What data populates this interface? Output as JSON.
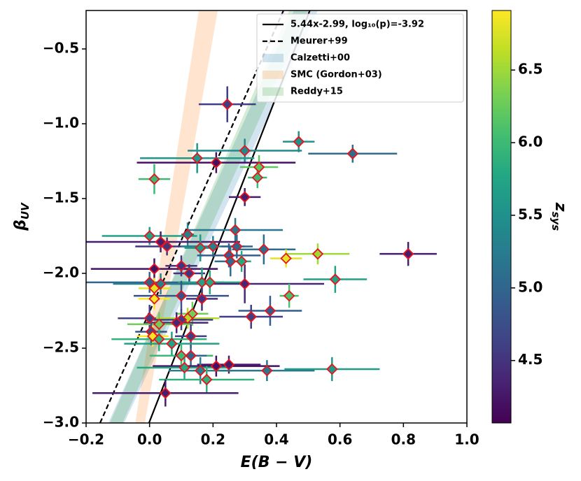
{
  "chart_data": {
    "type": "scatter",
    "xlabel": "E(B − V)",
    "ylabel": {
      "main": "β",
      "sub": "UV"
    },
    "colorbar_label": {
      "main": "z",
      "sub": "sys"
    },
    "colormap": "viridis",
    "marker_edge_color": "#e8141c",
    "xlim": [
      -0.2,
      1.0
    ],
    "ylim": [
      -3.0,
      -0.243
    ],
    "xticks": [
      {
        "value": -0.2,
        "label": "−0.2"
      },
      {
        "value": 0.0,
        "label": "0.0"
      },
      {
        "value": 0.2,
        "label": "0.2"
      },
      {
        "value": 0.4,
        "label": "0.4"
      },
      {
        "value": 0.6,
        "label": "0.6"
      },
      {
        "value": 0.8,
        "label": "0.8"
      },
      {
        "value": 1.0,
        "label": "1.0"
      }
    ],
    "yticks": [
      {
        "value": -3.0,
        "label": "−3.0"
      },
      {
        "value": -2.5,
        "label": "−2.5"
      },
      {
        "value": -2.0,
        "label": "−2.0"
      },
      {
        "value": -1.5,
        "label": "−1.5"
      },
      {
        "value": -1.0,
        "label": "−1.0"
      },
      {
        "value": -0.5,
        "label": "−0.5"
      }
    ],
    "clim": [
      4.07,
      6.91
    ],
    "cticks": [
      4.5,
      {
        "value": 5.0,
        "label": "5.0"
      },
      5.5,
      {
        "value": 6.0,
        "label": "6.0"
      },
      6.5
    ],
    "legend": "upper right",
    "lines": [
      {
        "name": "5.44x-2.99, log₁₀(p)=-3.92",
        "color": "#000000",
        "style": "solid",
        "x": [
          -0.0018,
          0.505
        ],
        "values": [
          -3.0,
          -0.243
        ]
      },
      {
        "name": "Meurer+99",
        "color": "#000000",
        "style": "dashed",
        "x": [
          -0.156,
          0.422
        ],
        "values": [
          -3.0,
          -0.243
        ]
      }
    ],
    "bands": [
      {
        "name": "Calzetti+00",
        "color": "#1f77b4",
        "x_low": [
          -0.13,
          0.455
        ],
        "x_high": [
          -0.08,
          0.53
        ],
        "values": [
          -3.0,
          -0.243
        ]
      },
      {
        "name": "SMC (Gordon+03)",
        "color": "#ff7f0e",
        "x_low": [
          -0.045,
          0.155
        ],
        "x_high": [
          -0.015,
          0.215
        ],
        "values": [
          -3.0,
          -0.243
        ]
      },
      {
        "name": "Reddy+15",
        "color": "#2ca02c",
        "x_low": [
          -0.125,
          0.44
        ],
        "x_high": [
          -0.085,
          0.5
        ],
        "values": [
          -3.0,
          -0.243
        ]
      }
    ],
    "series": [
      {
        "x": [
          0.245,
          0.47,
          0.64,
          0.3,
          0.21,
          0.15,
          0.345,
          0.34,
          0.015,
          0.3,
          0.27,
          0.0,
          0.12,
          0.035,
          0.055,
          0.16,
          0.2,
          0.275,
          0.36,
          0.25,
          0.255,
          0.29,
          0.43,
          0.53,
          0.815,
          0.585,
          0.015,
          0.1,
          0.125,
          0.0,
          0.165,
          0.19,
          0.3,
          0.035,
          0.015,
          0.1,
          0.165,
          0.44,
          0.38,
          0.32,
          0.015,
          0.135,
          0.0,
          0.12,
          0.1,
          0.085,
          0.03,
          0.005,
          0.01,
          0.13,
          0.03,
          0.07,
          0.1,
          0.13,
          0.21,
          0.25,
          0.11,
          0.16,
          0.37,
          0.575,
          0.18,
          0.05
        ],
        "values": [
          -0.87,
          -1.12,
          -1.2,
          -1.18,
          -1.26,
          -1.23,
          -1.29,
          -1.36,
          -1.37,
          -1.49,
          -1.71,
          -1.75,
          -1.74,
          -1.79,
          -1.82,
          -1.83,
          -1.82,
          -1.82,
          -1.84,
          -1.88,
          -1.92,
          -1.92,
          -1.9,
          -1.87,
          -1.87,
          -2.04,
          -1.97,
          -1.95,
          -2.0,
          -2.06,
          -2.06,
          -2.06,
          -2.07,
          -2.07,
          -2.1,
          -2.15,
          -2.17,
          -2.15,
          -2.25,
          -2.29,
          -2.17,
          -2.27,
          -2.3,
          -2.3,
          -2.31,
          -2.33,
          -2.34,
          -2.39,
          -2.42,
          -2.42,
          -2.44,
          -2.47,
          -2.55,
          -2.55,
          -2.62,
          -2.61,
          -2.63,
          -2.65,
          -2.65,
          -2.64,
          -2.71,
          -2.8
        ],
        "xerr": [
          0.09,
          0.05,
          0.14,
          0.18,
          0.25,
          0.18,
          0.06,
          0.03,
          0.05,
          0.05,
          0.15,
          0.15,
          0.02,
          0.25,
          0.1,
          0.05,
          0.1,
          0.05,
          0.1,
          0.1,
          0.05,
          0.03,
          0.05,
          0.1,
          0.09,
          0.1,
          0.2,
          0.05,
          0.05,
          0.2,
          0.07,
          0.1,
          0.25,
          0.15,
          0.05,
          0.15,
          0.05,
          0.03,
          0.1,
          0.1,
          0.05,
          0.05,
          0.1,
          0.1,
          0.1,
          0.1,
          0.1,
          0.05,
          0.05,
          0.05,
          0.15,
          0.15,
          0.1,
          0.05,
          0.2,
          0.1,
          0.15,
          0.1,
          0.15,
          0.15,
          0.15,
          0.23
        ],
        "yerr": [
          0.12,
          0.07,
          0.06,
          0.08,
          0.07,
          0.1,
          0.08,
          0.07,
          0.1,
          0.06,
          0.08,
          0.06,
          0.08,
          0.07,
          0.06,
          0.09,
          0.07,
          0.08,
          0.1,
          0.08,
          0.1,
          0.07,
          0.06,
          0.07,
          0.08,
          0.09,
          0.07,
          0.07,
          0.06,
          0.07,
          0.1,
          0.08,
          0.13,
          0.07,
          0.07,
          0.1,
          0.08,
          0.08,
          0.1,
          0.08,
          0.07,
          0.08,
          0.09,
          0.07,
          0.07,
          0.07,
          0.08,
          0.09,
          0.07,
          0.08,
          0.08,
          0.08,
          0.08,
          0.07,
          0.07,
          0.06,
          0.08,
          0.09,
          0.07,
          0.08,
          0.09,
          0.09
        ],
        "z": [
          4.6,
          5.5,
          5.1,
          5.4,
          4.2,
          5.6,
          6.2,
          6.0,
          6.0,
          4.3,
          5.2,
          5.7,
          5.3,
          4.3,
          4.5,
          5.6,
          5.3,
          5.0,
          5.1,
          4.9,
          5.1,
          5.8,
          6.8,
          6.5,
          4.3,
          5.7,
          4.2,
          4.5,
          4.5,
          5.0,
          5.7,
          5.8,
          4.4,
          5.3,
          6.8,
          4.8,
          4.5,
          6.1,
          4.9,
          4.6,
          6.9,
          6.3,
          4.6,
          6.6,
          4.6,
          4.4,
          6.3,
          4.8,
          6.9,
          4.6,
          5.9,
          5.7,
          6.0,
          5.0,
          4.2,
          4.3,
          5.8,
          5.3,
          5.2,
          5.6,
          5.9,
          4.3
        ]
      }
    ]
  }
}
